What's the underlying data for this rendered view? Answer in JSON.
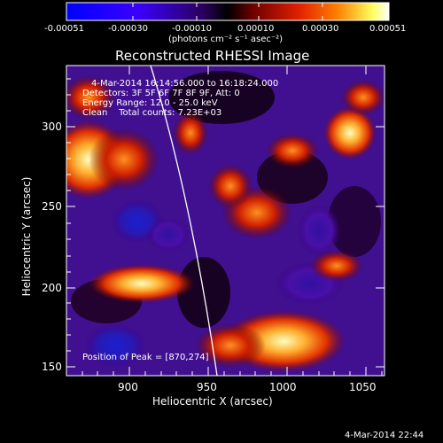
{
  "colorbar": {
    "tick_labels": [
      "-0.00051",
      "-0.00030",
      "-0.00010",
      "0.00010",
      "0.00030",
      "0.00051"
    ],
    "units": "(photons cm⁻² s⁻¹ asec⁻²)",
    "colors": {
      "neg_low": "#0000ff",
      "neg_mid": "#5a00c8",
      "zero": "#000000",
      "pos_low": "#c01000",
      "pos_mid": "#ff5a00",
      "pos_high": "#ffff80",
      "max": "#ffffff"
    }
  },
  "plot": {
    "title": "Reconstructed RHESSI Image",
    "xlabel": "Heliocentric X (arcsec)",
    "ylabel": "Heliocentric Y (arcsec)",
    "x_ticks": [
      "900",
      "950",
      "1000",
      "1050"
    ],
    "y_ticks": [
      "150",
      "200",
      "250",
      "300"
    ]
  },
  "annotations": {
    "time_range": "4-Mar-2014 16:14:56.000 to 16:18:24.000",
    "detectors": "Detectors: 3F 5F 6F 7F 8F 9F, Att: 0",
    "energy": "Energy Range: 12.0 - 25.0 keV",
    "clean": "Clean    Total counts: 7.23E+03",
    "peak": "Position of Peak = [870,274]"
  },
  "footer": {
    "timestamp": "4-Mar-2014 22:44"
  }
}
